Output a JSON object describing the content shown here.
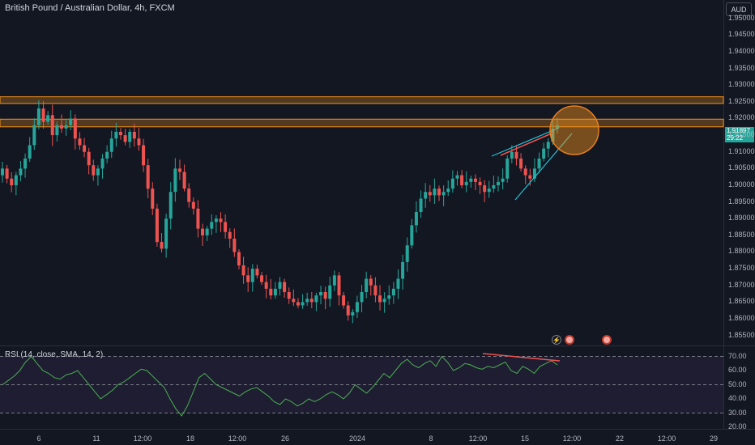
{
  "header": {
    "symbol_title": "British Pound / Australian Dollar, 4h, FXCM",
    "currency": "AUD",
    "last_price": "1.91897",
    "countdown": "29:22"
  },
  "rsi": {
    "title": "RSI (14, close, SMA, 14, 2)",
    "levels": [
      "70.00",
      "60.00",
      "50.00",
      "40.00",
      "30.00",
      "20.00"
    ]
  },
  "colors": {
    "background": "#131722",
    "up": "#26a69a",
    "down": "#ef5350",
    "zone": "#f7931a",
    "rsi_line": "#4caf50",
    "trend_line": "#22c3d6"
  },
  "icons": [
    "lightning-icon",
    "flag-event-icon",
    "flag-event-icon"
  ],
  "chart_data": {
    "type": "candlestick",
    "price_axis_ticks": [
      "1.95000",
      "1.94500",
      "1.94000",
      "1.93500",
      "1.93000",
      "1.92500",
      "1.92000",
      "1.91500",
      "1.91000",
      "1.90500",
      "1.90000",
      "1.89500",
      "1.89000",
      "1.88500",
      "1.88000",
      "1.87500",
      "1.87000",
      "1.86500",
      "1.86000",
      "1.85500"
    ],
    "time_axis_ticks": [
      "6",
      "11",
      "12:00",
      "18",
      "12:00",
      "26",
      "2024",
      "8",
      "12:00",
      "15",
      "12:00",
      "22",
      "12:00",
      "29"
    ],
    "ylim": [
      1.852,
      1.9555
    ],
    "resistance_zones": [
      [
        1.9245,
        1.9265
      ],
      [
        1.9175,
        1.9198
      ]
    ],
    "close_path": [
      1.905,
      1.902,
      1.9,
      1.903,
      1.905,
      1.908,
      1.912,
      1.918,
      1.923,
      1.919,
      1.921,
      1.915,
      1.918,
      1.917,
      1.918,
      1.92,
      1.914,
      1.912,
      1.91,
      1.906,
      1.903,
      1.905,
      1.908,
      1.91,
      1.914,
      1.916,
      1.915,
      1.913,
      1.916,
      1.914,
      1.912,
      1.906,
      1.899,
      1.893,
      1.883,
      1.881,
      1.89,
      1.898,
      1.905,
      1.904,
      1.899,
      1.895,
      1.893,
      1.887,
      1.885,
      1.887,
      1.889,
      1.89,
      1.889,
      1.886,
      1.884,
      1.88,
      1.876,
      1.873,
      1.871,
      1.875,
      1.873,
      1.871,
      1.869,
      1.867,
      1.869,
      1.871,
      1.868,
      1.866,
      1.865,
      1.864,
      1.865,
      1.866,
      1.865,
      1.867,
      1.868,
      1.866,
      1.87,
      1.873,
      1.867,
      1.864,
      1.861,
      1.862,
      1.865,
      1.868,
      1.872,
      1.87,
      1.867,
      1.865,
      1.866,
      1.867,
      1.869,
      1.872,
      1.877,
      1.882,
      1.888,
      1.892,
      1.896,
      1.898,
      1.897,
      1.899,
      1.897,
      1.898,
      1.899,
      1.902,
      1.903,
      1.9,
      1.901,
      1.902,
      1.901,
      1.9,
      1.898,
      1.899,
      1.9,
      1.901,
      1.902,
      1.908,
      1.91,
      1.908,
      1.905,
      1.903,
      1.902,
      1.905,
      1.908,
      1.911,
      1.913,
      1.917,
      1.918
    ],
    "rsi_path": [
      50,
      53,
      56,
      60,
      66,
      70,
      65,
      60,
      58,
      55,
      54,
      57,
      58,
      60,
      55,
      50,
      45,
      40,
      43,
      46,
      50,
      52,
      55,
      58,
      61,
      60,
      56,
      52,
      48,
      40,
      33,
      28,
      35,
      45,
      55,
      58,
      54,
      50,
      48,
      46,
      44,
      42,
      45,
      47,
      48,
      45,
      42,
      38,
      36,
      40,
      38,
      35,
      37,
      40,
      38,
      40,
      43,
      45,
      43,
      40,
      44,
      50,
      47,
      44,
      48,
      53,
      58,
      55,
      60,
      65,
      68,
      64,
      62,
      65,
      67,
      63,
      70,
      66,
      60,
      62,
      65,
      64,
      62,
      61,
      63,
      62,
      64,
      66,
      60,
      58,
      63,
      61,
      58,
      63,
      65,
      67,
      64
    ],
    "rsi_levels": {
      "upper": 70,
      "middle": 50,
      "lower": 30
    },
    "rsi_ylim": [
      20,
      76
    ]
  }
}
